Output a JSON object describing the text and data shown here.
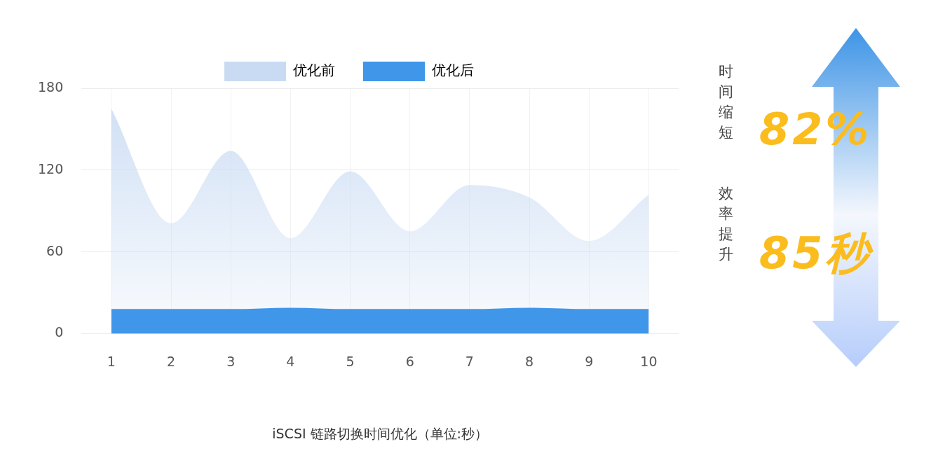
{
  "chart_data": {
    "type": "area",
    "xlabel": "iSCSI 链路切换时间优化（单位:秒）",
    "categories": [
      "1",
      "2",
      "3",
      "4",
      "5",
      "6",
      "7",
      "8",
      "9",
      "10"
    ],
    "series": [
      {
        "name": "优化前",
        "color": "#c9dbf3",
        "values": [
          165,
          81,
          134,
          70,
          119,
          75,
          109,
          100,
          68,
          102
        ]
      },
      {
        "name": "优化后",
        "color": "#4096e8",
        "values": [
          18,
          18,
          18,
          19,
          18,
          18,
          18,
          19,
          18,
          18
        ]
      }
    ],
    "ylim": [
      0,
      180
    ],
    "yticks": [
      0,
      60,
      120,
      180
    ],
    "grid": true,
    "legend": "top",
    "annotations": [
      "时间缩短",
      "82%",
      "效率提升",
      "85秒"
    ]
  }
}
